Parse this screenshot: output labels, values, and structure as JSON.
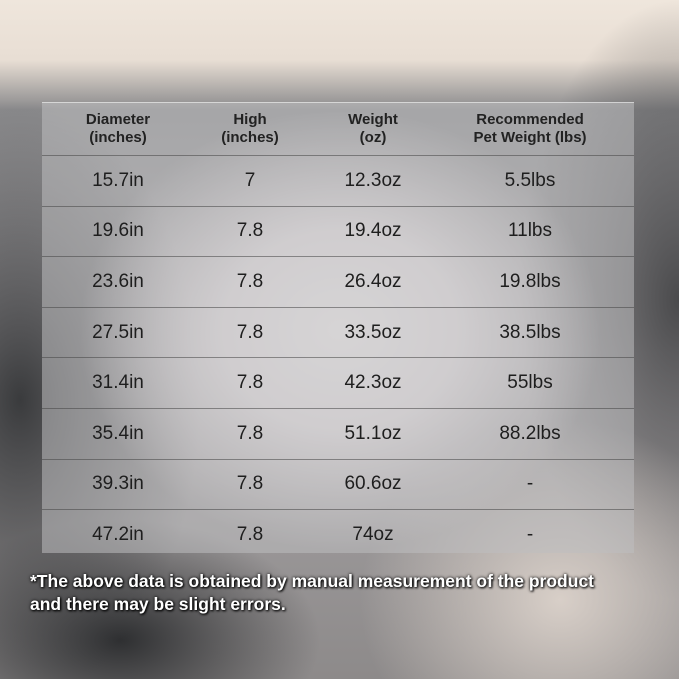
{
  "table": {
    "headers": [
      {
        "line1": "Diameter",
        "line2": "(inches)"
      },
      {
        "line1": "High",
        "line2": "(inches)"
      },
      {
        "line1": "Weight",
        "line2": "(oz)"
      },
      {
        "line1": "Recommended",
        "line2": "Pet Weight (lbs)"
      }
    ],
    "rows": [
      [
        "15.7in",
        "7",
        "12.3oz",
        "5.5lbs"
      ],
      [
        "19.6in",
        "7.8",
        "19.4oz",
        "11lbs"
      ],
      [
        "23.6in",
        "7.8",
        "26.4oz",
        "19.8lbs"
      ],
      [
        "27.5in",
        "7.8",
        "33.5oz",
        "38.5lbs"
      ],
      [
        "31.4in",
        "7.8",
        "42.3oz",
        "55lbs"
      ],
      [
        "35.4in",
        "7.8",
        "51.1oz",
        "88.2lbs"
      ],
      [
        "39.3in",
        "7.8",
        "60.6oz",
        "-"
      ],
      [
        "47.2in",
        "7.8",
        "74oz",
        "-"
      ]
    ]
  },
  "footnote": {
    "line1": "*The above data is obtained by manual measurement of the product",
    "line2": "and there may be slight errors."
  }
}
